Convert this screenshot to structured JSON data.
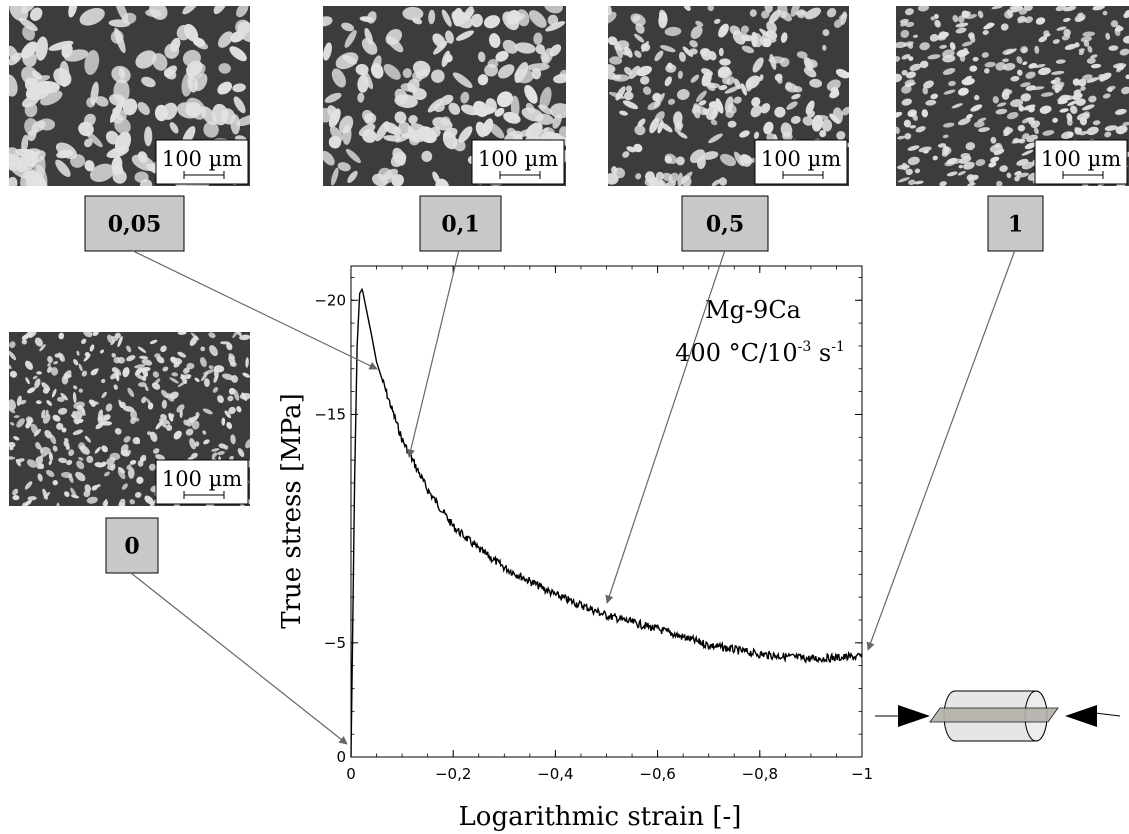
{
  "chart_data": {
    "type": "line",
    "title": "",
    "xlabel": "Logarithmic strain [-]",
    "ylabel": "True stress [MPa]",
    "xlim": [
      0,
      -1
    ],
    "ylim": [
      0,
      -21.5
    ],
    "x_ticks": [
      0,
      -0.2,
      -0.4,
      -0.6,
      -0.8,
      -1
    ],
    "x_tick_labels": [
      "0",
      "−0,2",
      "−0,4",
      "−0,6",
      "−0,8",
      "−1"
    ],
    "y_ticks": [
      0,
      -5,
      -15,
      -20
    ],
    "y_tick_labels": [
      "0",
      "−5",
      "−15",
      "−20"
    ],
    "grid": false,
    "annotation": {
      "line1": "Mg-9Ca",
      "line2_prefix": "400 °C/10",
      "line2_sup1": "-3",
      "line2_mid": " s",
      "line2_sup2": "-1"
    },
    "series": [
      {
        "name": "",
        "x": [
          0,
          -0.003,
          -0.007,
          -0.012,
          -0.017,
          -0.022,
          -0.03,
          -0.04,
          -0.05,
          -0.07,
          -0.1,
          -0.15,
          -0.2,
          -0.25,
          -0.3,
          -0.4,
          -0.5,
          -0.6,
          -0.7,
          -0.8,
          -0.9,
          -1.0
        ],
        "y": [
          0,
          -5,
          -12,
          -18,
          -20.3,
          -20.5,
          -19.6,
          -18.5,
          -17.3,
          -15.9,
          -13.9,
          -11.7,
          -10.1,
          -9.1,
          -8.3,
          -7.1,
          -6.2,
          -5.6,
          -4.9,
          -4.5,
          -4.3,
          -4.4
        ]
      }
    ]
  },
  "micrographs": [
    {
      "strain_label": "0,05",
      "scale_label": "100 µm"
    },
    {
      "strain_label": "0,1",
      "scale_label": "100 µm"
    },
    {
      "strain_label": "0,5",
      "scale_label": "100 µm"
    },
    {
      "strain_label": "1",
      "scale_label": "100 µm"
    },
    {
      "strain_label": "0",
      "scale_label": "100 µm"
    }
  ],
  "colors": {
    "label_box": "#c8c8c8",
    "arrow": "#666666",
    "micrograph_dark": "#3c3c3c",
    "micrograph_light": "#e2e2e2",
    "curve": "#000000"
  }
}
